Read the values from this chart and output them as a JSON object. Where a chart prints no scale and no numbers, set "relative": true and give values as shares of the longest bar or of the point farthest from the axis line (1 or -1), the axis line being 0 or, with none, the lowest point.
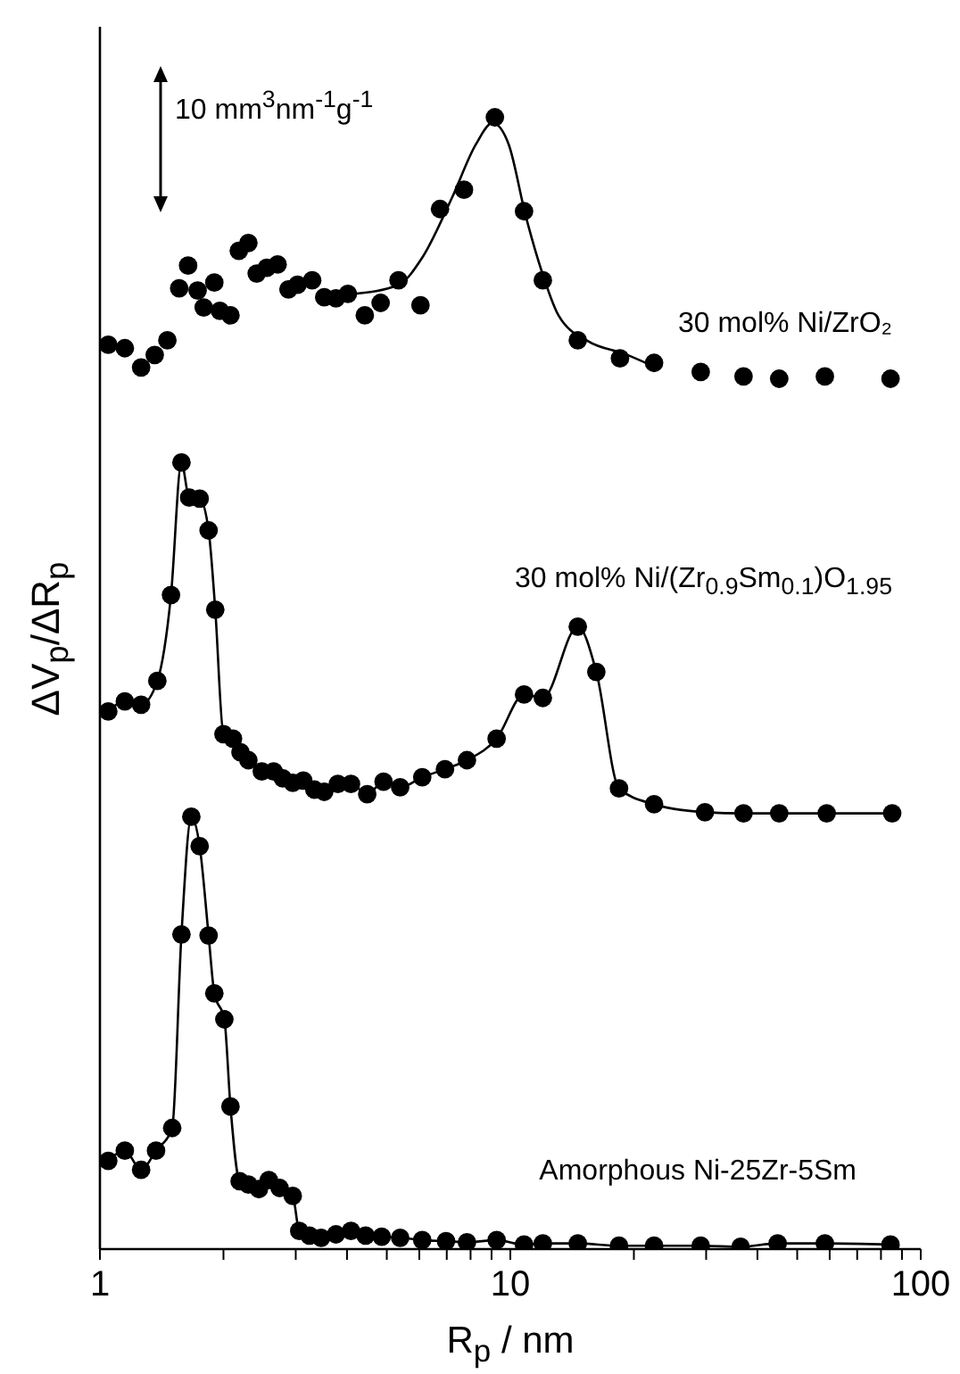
{
  "chart_data": {
    "type": "scatter",
    "relative": true,
    "log": "x",
    "xlabel": "R$_{p}$ / nm",
    "ylabel": "ΔV$_{p}$/ΔR$_{p}$",
    "xlim": [
      1,
      100
    ],
    "xticks": [
      1,
      {
        "value": 2,
        "label": null
      },
      {
        "value": 3,
        "label": null
      },
      {
        "value": 4,
        "label": null
      },
      {
        "value": 5,
        "label": null
      },
      {
        "value": 6,
        "label": null
      },
      {
        "value": 7,
        "label": null
      },
      {
        "value": 8,
        "label": null
      },
      {
        "value": 9,
        "label": null
      },
      10,
      {
        "value": 20,
        "label": null
      },
      {
        "value": 30,
        "label": null
      },
      {
        "value": 40,
        "label": null
      },
      {
        "value": 50,
        "label": null
      },
      {
        "value": 60,
        "label": null
      },
      {
        "value": 70,
        "label": null
      },
      {
        "value": 80,
        "label": null
      },
      {
        "value": 90,
        "label": null
      },
      100
    ],
    "grid": false,
    "legend": false,
    "annotations": [
      "10 mm$^{3}$nm$^{-1}$g$^{-1}$"
    ],
    "series": [
      {
        "name": "30 mol% Ni/ZrO₂",
        "marker": "circle",
        "color": "#000000",
        "x": [
          1.048,
          1.15,
          1.26,
          1.36,
          1.46,
          1.56,
          1.64,
          1.73,
          1.79,
          1.9,
          1.96,
          2.08,
          2.18,
          2.3,
          2.41,
          2.55,
          2.71,
          2.88,
          3.03,
          3.29,
          3.52,
          3.76,
          4.02,
          4.42,
          4.83,
          5.34,
          6.04,
          6.74,
          7.71,
          9.17,
          10.8,
          12.0,
          14.6,
          18.5,
          22.4,
          29.1,
          37.0,
          45.2,
          58.4,
          84.4
        ],
        "values": [
          0.799,
          0.796,
          0.779,
          0.79,
          0.803,
          0.849,
          0.869,
          0.847,
          0.832,
          0.854,
          0.829,
          0.825,
          0.882,
          0.889,
          0.862,
          0.867,
          0.87,
          0.848,
          0.852,
          0.856,
          0.841,
          0.84,
          0.844,
          0.825,
          0.836,
          0.856,
          0.834,
          0.919,
          0.936,
          1.0,
          0.917,
          0.856,
          0.803,
          0.787,
          0.783,
          0.775,
          0.771,
          0.769,
          0.771,
          0.769
        ]
      },
      {
        "type": "line",
        "marker": "none",
        "color": "#000000",
        "x": [
          4.16,
          5.34,
          6.1,
          7.21,
          8.24,
          9.05,
          9.91,
          10.9,
          11.9,
          13.1,
          15.5,
          19.0,
          22.0
        ],
        "values": [
          0.844,
          0.852,
          0.876,
          0.929,
          0.976,
          0.995,
          0.976,
          0.913,
          0.865,
          0.825,
          0.802,
          0.791,
          0.781
        ]
      },
      {
        "name": "30 mol% Ni/(Zr$_{0.9}$Sm$_{0.1}$)O$_{1.95}$",
        "type": "line",
        "marker": "circle",
        "color": "#000000",
        "x": [
          1.048,
          1.15,
          1.26,
          1.38,
          1.49,
          1.58,
          1.65,
          1.75,
          1.84,
          1.91,
          2.0,
          2.11,
          2.2,
          2.3,
          2.48,
          2.65,
          2.79,
          2.95,
          3.13,
          3.33,
          3.52,
          3.8,
          4.09,
          4.48,
          4.91,
          5.39,
          6.1,
          6.93,
          7.84,
          9.26,
          10.8,
          12.0,
          14.6,
          16.2,
          18.4,
          22.4,
          29.8,
          37.0,
          45.2,
          59.0,
          85.2
        ],
        "values": [
          0.475,
          0.484,
          0.481,
          0.502,
          0.578,
          0.695,
          0.664,
          0.663,
          0.635,
          0.565,
          0.455,
          0.451,
          0.439,
          0.432,
          0.422,
          0.422,
          0.416,
          0.412,
          0.414,
          0.406,
          0.404,
          0.411,
          0.411,
          0.402,
          0.413,
          0.408,
          0.417,
          0.424,
          0.432,
          0.451,
          0.49,
          0.487,
          0.55,
          0.51,
          0.407,
          0.393,
          0.386,
          0.385,
          0.385,
          0.385,
          0.385
        ]
      },
      {
        "name": "Amorphous Ni-25Zr-5Sm",
        "type": "line",
        "marker": "circle",
        "color": "#000000",
        "x": [
          1.048,
          1.15,
          1.26,
          1.37,
          1.5,
          1.58,
          1.67,
          1.75,
          1.84,
          1.9,
          2.01,
          2.08,
          2.19,
          2.3,
          2.44,
          2.58,
          2.74,
          2.95,
          3.06,
          3.24,
          3.46,
          3.76,
          4.09,
          4.44,
          4.86,
          5.39,
          6.1,
          6.97,
          7.84,
          9.26,
          10.8,
          12.0,
          14.6,
          18.4,
          22.4,
          29.1,
          36.4,
          44.8,
          58.4,
          84.4
        ],
        "values": [
          0.078,
          0.087,
          0.07,
          0.087,
          0.107,
          0.278,
          0.382,
          0.356,
          0.277,
          0.226,
          0.203,
          0.126,
          0.06,
          0.057,
          0.053,
          0.061,
          0.054,
          0.047,
          0.016,
          0.012,
          0.01,
          0.013,
          0.016,
          0.012,
          0.011,
          0.01,
          0.008,
          0.007,
          0.006,
          0.008,
          0.004,
          0.005,
          0.005,
          0.003,
          0.003,
          0.003,
          0.002,
          0.005,
          0.005,
          0.004
        ]
      }
    ]
  }
}
